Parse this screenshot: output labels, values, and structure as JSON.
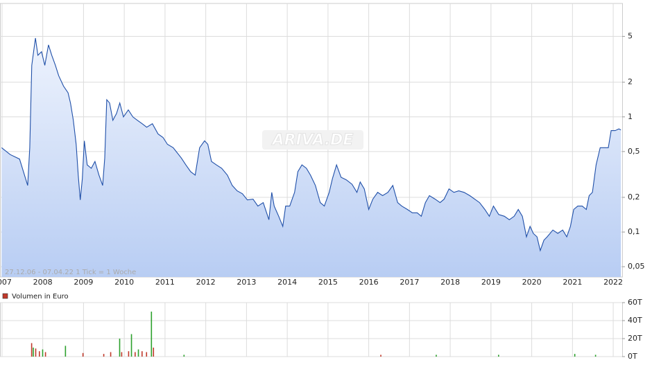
{
  "chart_data": [
    {
      "type": "line",
      "annotation": "27.12.06 - 07.04.22   1 Tick = 1 Woche",
      "watermark": "ARIVA.DE",
      "log_scale": true,
      "grid": true,
      "xlim": [
        2006.95,
        2022.22
      ],
      "xticks": [
        2007,
        2008,
        2009,
        2010,
        2011,
        2012,
        2013,
        2014,
        2015,
        2016,
        2017,
        2018,
        2019,
        2020,
        2021,
        2022
      ],
      "ylim": [
        0.0407,
        9.66
      ],
      "yticks": [
        {
          "value": 0.05,
          "label": "0,05"
        },
        {
          "value": 0.1,
          "label": "0,1"
        },
        {
          "value": 0.2,
          "label": "0,2"
        },
        {
          "value": 0.5,
          "label": "0,5"
        },
        1,
        2,
        5
      ],
      "x": [
        2006.99,
        2007.2,
        2007.43,
        2007.63,
        2007.68,
        2007.73,
        2007.82,
        2007.88,
        2007.97,
        2008.05,
        2008.14,
        2008.22,
        2008.31,
        2008.39,
        2008.51,
        2008.62,
        2008.68,
        2008.75,
        2008.82,
        2008.87,
        2008.92,
        2008.97,
        2009.02,
        2009.09,
        2009.19,
        2009.28,
        2009.38,
        2009.47,
        2009.52,
        2009.57,
        2009.64,
        2009.72,
        2009.81,
        2009.89,
        2009.98,
        2010.1,
        2010.21,
        2010.32,
        2010.44,
        2010.55,
        2010.69,
        2010.83,
        2010.95,
        2011.06,
        2011.2,
        2011.4,
        2011.51,
        2011.63,
        2011.74,
        2011.85,
        2011.97,
        2012.05,
        2012.14,
        2012.26,
        2012.39,
        2012.53,
        2012.65,
        2012.77,
        2012.9,
        2013.02,
        2013.16,
        2013.28,
        2013.41,
        2013.55,
        2013.62,
        2013.68,
        2013.79,
        2013.89,
        2013.96,
        2014.06,
        2014.18,
        2014.26,
        2014.36,
        2014.47,
        2014.57,
        2014.69,
        2014.81,
        2014.91,
        2015.03,
        2015.11,
        2015.21,
        2015.32,
        2015.45,
        2015.59,
        2015.71,
        2015.79,
        2015.89,
        2016.0,
        2016.1,
        2016.22,
        2016.34,
        2016.47,
        2016.59,
        2016.71,
        2016.81,
        2016.95,
        2017.07,
        2017.19,
        2017.29,
        2017.39,
        2017.49,
        2017.63,
        2017.75,
        2017.85,
        2017.97,
        2018.09,
        2018.21,
        2018.34,
        2018.48,
        2018.6,
        2018.72,
        2018.85,
        2018.96,
        2019.06,
        2019.19,
        2019.33,
        2019.45,
        2019.57,
        2019.67,
        2019.77,
        2019.87,
        2019.96,
        2020.04,
        2020.13,
        2020.21,
        2020.3,
        2020.38,
        2020.52,
        2020.64,
        2020.76,
        2020.86,
        2020.95,
        2021.03,
        2021.13,
        2021.24,
        2021.34,
        2021.41,
        2021.49,
        2021.58,
        2021.68,
        2021.78,
        2021.88,
        2021.95,
        2022.05,
        2022.14,
        2022.19
      ],
      "series": [
        {
          "color": "#1f4fa8",
          "values": [
            0.54,
            0.471,
            0.43,
            0.254,
            0.54,
            2.8,
            4.84,
            3.43,
            3.68,
            2.8,
            4.22,
            3.43,
            2.8,
            2.28,
            1.85,
            1.62,
            1.32,
            0.934,
            0.578,
            0.312,
            0.19,
            0.291,
            0.619,
            0.383,
            0.358,
            0.41,
            0.312,
            0.254,
            0.439,
            1.41,
            1.32,
            0.934,
            1.07,
            1.32,
            1.0,
            1.15,
            1.0,
            0.934,
            0.872,
            0.814,
            0.872,
            0.71,
            0.663,
            0.578,
            0.54,
            0.439,
            0.383,
            0.334,
            0.312,
            0.54,
            0.619,
            0.578,
            0.41,
            0.383,
            0.358,
            0.312,
            0.254,
            0.228,
            0.215,
            0.19,
            0.193,
            0.168,
            0.18,
            0.128,
            0.221,
            0.168,
            0.137,
            0.112,
            0.168,
            0.168,
            0.221,
            0.334,
            0.383,
            0.358,
            0.312,
            0.254,
            0.18,
            0.168,
            0.221,
            0.291,
            0.383,
            0.299,
            0.284,
            0.26,
            0.221,
            0.272,
            0.237,
            0.157,
            0.193,
            0.221,
            0.207,
            0.221,
            0.254,
            0.18,
            0.168,
            0.157,
            0.147,
            0.147,
            0.137,
            0.18,
            0.207,
            0.193,
            0.18,
            0.193,
            0.237,
            0.221,
            0.228,
            0.221,
            0.207,
            0.193,
            0.18,
            0.157,
            0.137,
            0.168,
            0.142,
            0.137,
            0.128,
            0.137,
            0.157,
            0.137,
            0.0908,
            0.112,
            0.0973,
            0.0908,
            0.0691,
            0.085,
            0.0908,
            0.104,
            0.0973,
            0.104,
            0.0908,
            0.112,
            0.157,
            0.168,
            0.168,
            0.157,
            0.207,
            0.221,
            0.383,
            0.54,
            0.54,
            0.54,
            0.76,
            0.76,
            0.787,
            0.77
          ]
        }
      ]
    },
    {
      "type": "bar",
      "grid": true,
      "xlim": [
        2006.95,
        2022.22
      ],
      "xticks": [
        2007,
        2008,
        2009,
        2010,
        2011,
        2012,
        2013,
        2014,
        2015,
        2016,
        2017,
        2018,
        2019,
        2020,
        2021,
        2022
      ],
      "ylim": [
        0,
        60000
      ],
      "yticks": [
        {
          "value": 0,
          "label": "0T"
        },
        {
          "value": 20000,
          "label": "20T"
        },
        {
          "value": 40000,
          "label": "40T"
        },
        {
          "value": 60000,
          "label": "60T"
        }
      ],
      "series": [
        {
          "name": "Volumen in Euro",
          "color": "#c0392b",
          "x": [
            2007.73,
            2007.77,
            2007.83,
            2007.92,
            2008.0,
            2008.07,
            2008.56,
            2008.99,
            2009.5,
            2009.67,
            2009.89,
            2009.94,
            2010.11,
            2010.18,
            2010.27,
            2010.35,
            2010.44,
            2010.55,
            2010.67,
            2010.72,
            2011.47,
            2016.3,
            2017.66,
            2019.19,
            2021.06,
            2021.57
          ],
          "values": [
            15000,
            10000,
            9000,
            6000,
            8000,
            5000,
            12000,
            4000,
            3000,
            5000,
            20000,
            5000,
            6000,
            25000,
            5000,
            8000,
            6000,
            5000,
            50000,
            10000,
            2000,
            2000,
            2000,
            2000,
            3000,
            2000
          ],
          "colors": [
            "#c0392b",
            "#2ca02c",
            "#c0392b",
            "#c0392b",
            "#2ca02c",
            "#c0392b",
            "#2ca02c",
            "#c0392b",
            "#c0392b",
            "#c0392b",
            "#2ca02c",
            "#c0392b",
            "#c0392b",
            "#2ca02c",
            "#c0392b",
            "#2ca02c",
            "#c0392b",
            "#c0392b",
            "#2ca02c",
            "#c0392b",
            "#2ca02c",
            "#c0392b",
            "#2ca02c",
            "#2ca02c",
            "#2ca02c",
            "#2ca02c"
          ]
        }
      ]
    }
  ]
}
